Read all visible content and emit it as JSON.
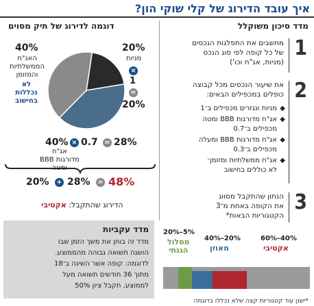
{
  "title": "איך עובד הדירוג של קלי שוקי הון?",
  "right_header": "מדד סיכון משוקלל",
  "left_header": "דוגמה לדירוג של תיק מסוים",
  "steps": [
    {
      "num": "1",
      "text": [
        "מחשבים את התפלגות הנכסים",
        "של כל קופה לפי סוג הנכס",
        "(מניות, אג\"ח וכו')"
      ]
    },
    {
      "num": "2",
      "text": [
        "את שיעור הנכסים מכל קבוצה",
        "כופלים במכפילים הבאים:"
      ],
      "bullets": [
        [
          "מניות ונגזרים מכפילים ב־1"
        ],
        [
          "אג\"ח מדורגות BBB ומטה",
          "מכפילים ב־0.7"
        ],
        [
          "אג\"ח מדורגות BBB ומעלה",
          "מכפילים ב־0.3"
        ],
        [
          "אג\"ח ממשלתיות ומזומן־",
          "לא כוללים בחישוב"
        ]
      ]
    },
    {
      "num": "3",
      "text": [
        "הנתון שהתקבל מסווג",
        "את הקופה באחת מ־3",
        "הקטגוריות הבאות*"
      ]
    }
  ],
  "pie": {
    "slices": [
      {
        "label": "מניות",
        "percent": 20,
        "color": "#2a2a2a"
      },
      {
        "label": "אג\"ח מדורגות BBB ומטה",
        "percent": 40,
        "color": "#4a6d8c"
      },
      {
        "label": "האג\"ח הממשלתיות והמזומן",
        "percent": 40,
        "color": "#8a8a8a"
      }
    ],
    "pct_top_right": "20%",
    "pct_top_left": "40%",
    "pct_bottom_left": "40%",
    "label_stocks": "מניות",
    "label_gov": [
      "האג\"ח",
      "הממשלתיות",
      "והמזומן"
    ],
    "label_not_counted": [
      "לא",
      "נכללות",
      "בחישוב"
    ],
    "label_bbb": [
      "אג\"ח",
      "מדורגות BBB",
      "ומטה"
    ]
  },
  "calc": {
    "stocks_mult": "1",
    "stocks_result": "20%",
    "bbb_mult": "0.7",
    "bbb_result": "28%",
    "sum_a": "20%",
    "sum_b": "28%",
    "sum_total": "48%",
    "result_prefix": "הדירוג שהתקבל:",
    "result_value": "אקטיבי"
  },
  "yield_box": {
    "title": "מדד עקביות",
    "lines": [
      "מדד זה בוחן את משך הזמן שבו",
      "הושגה תשואה גבוהה מהממוצע.",
      "לדוגמה: קופה אשר השיגה ב־18",
      "מתוך 36 חודשים תשואה מעל",
      "לממוצע, תקבל ציון 50%"
    ]
  },
  "categories": [
    {
      "range": "20%–5%",
      "name": [
        "מסלול",
        "הגנתי"
      ],
      "color": "#6e9a4a",
      "share": 20
    },
    {
      "range": "40%–20%",
      "name": [
        "מאוזן"
      ],
      "color": "#3a6e9a",
      "share": 20
    },
    {
      "range": "60%–40%",
      "name": [
        "אקטיבי"
      ],
      "color": "#b0262e",
      "share": 20
    }
  ],
  "footer": "*ישנן עוד קטגוריות קצה שלא נכללו בדוגמה"
}
